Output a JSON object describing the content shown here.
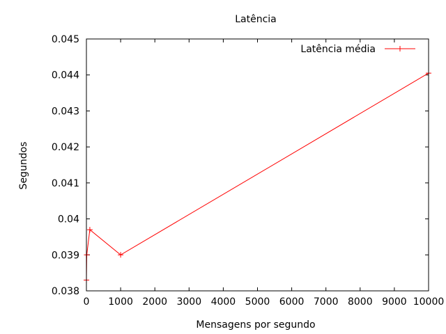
{
  "chart_data": {
    "type": "line",
    "title": "Latência",
    "xlabel": "Mensagens por segundo",
    "ylabel": "Segundos",
    "xlim": [
      0,
      10000
    ],
    "ylim": [
      0.038,
      0.045
    ],
    "xticks": [
      0,
      1000,
      2000,
      3000,
      4000,
      5000,
      6000,
      7000,
      8000,
      9000,
      10000
    ],
    "yticks": [
      0.038,
      0.039,
      0.04,
      0.041,
      0.042,
      0.043,
      0.044,
      0.045
    ],
    "xtick_labels": [
      "0",
      "1000",
      "2000",
      "3000",
      "4000",
      "5000",
      "6000",
      "7000",
      "8000",
      "9000",
      "10000"
    ],
    "ytick_labels": [
      "0.038",
      "0.039",
      "0.04",
      "0.041",
      "0.042",
      "0.043",
      "0.044",
      "0.045"
    ],
    "grid": false,
    "legend": {
      "position": "top-right"
    },
    "series": [
      {
        "name": "Latência média",
        "color": "#ff0000",
        "marker": "plus",
        "x": [
          1,
          10,
          100,
          1000,
          10000
        ],
        "y": [
          0.0383,
          0.039,
          0.0397,
          0.039,
          0.04405
        ]
      }
    ]
  }
}
